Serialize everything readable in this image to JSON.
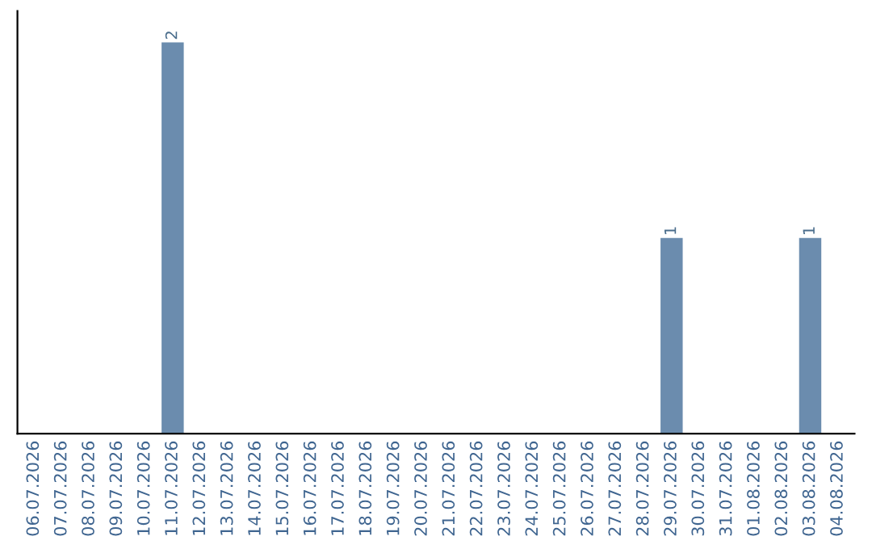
{
  "chart_data": {
    "type": "bar",
    "categories": [
      "06.07.2026",
      "07.07.2026",
      "08.07.2026",
      "09.07.2026",
      "10.07.2026",
      "11.07.2026",
      "12.07.2026",
      "13.07.2026",
      "14.07.2026",
      "15.07.2026",
      "16.07.2026",
      "17.07.2026",
      "18.07.2026",
      "19.07.2026",
      "20.07.2026",
      "21.07.2026",
      "22.07.2026",
      "23.07.2026",
      "24.07.2026",
      "25.07.2026",
      "26.07.2026",
      "27.07.2026",
      "28.07.2026",
      "29.07.2026",
      "30.07.2026",
      "31.07.2026",
      "01.08.2026",
      "02.08.2026",
      "03.08.2026",
      "04.08.2026"
    ],
    "values": [
      0,
      0,
      0,
      0,
      0,
      2,
      0,
      0,
      0,
      0,
      0,
      0,
      0,
      0,
      0,
      0,
      0,
      0,
      0,
      0,
      0,
      0,
      0,
      1,
      0,
      0,
      0,
      0,
      1,
      0
    ],
    "value_labels": [
      null,
      null,
      null,
      null,
      null,
      "2",
      null,
      null,
      null,
      null,
      null,
      null,
      null,
      null,
      null,
      null,
      null,
      null,
      null,
      null,
      null,
      null,
      null,
      "1",
      null,
      null,
      null,
      null,
      "1",
      null
    ],
    "color": "#6b8cae",
    "grid": false,
    "legend": false
  }
}
